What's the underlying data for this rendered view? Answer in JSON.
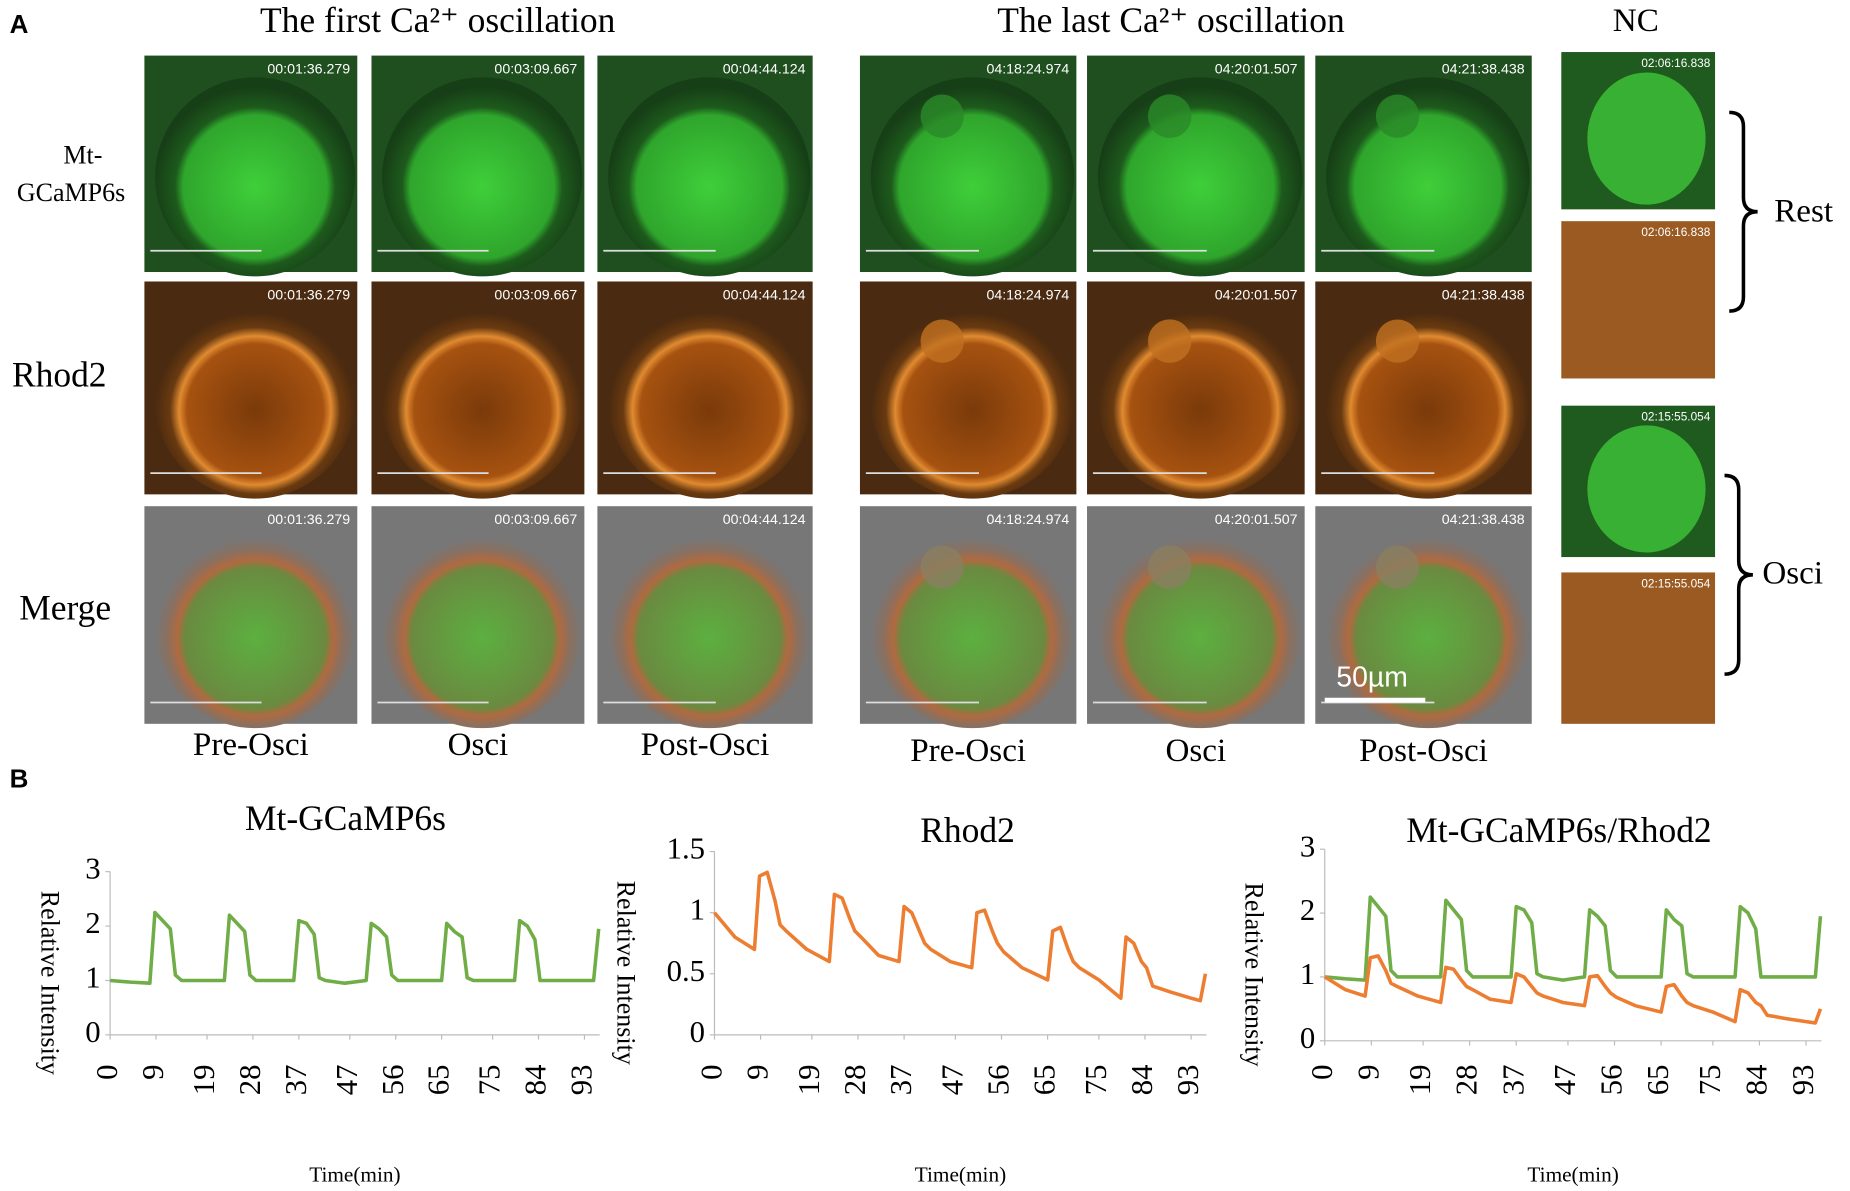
{
  "figure": {
    "panel_labels": [
      "A",
      "B"
    ],
    "group_titles": [
      "The first Ca²⁺ oscillation",
      "The last Ca²⁺ oscillation",
      "NC"
    ],
    "row_labels": [
      "Mt-",
      "GCaMP6s",
      "Rhod2",
      "Merge"
    ],
    "column_labels": [
      "Pre-Osci",
      "Osci",
      "Post-Osci",
      "Pre-Osci",
      "Osci",
      "Post-Osci"
    ],
    "timestamps": [
      "00:01:36.279",
      "00:03:09.667",
      "00:04:44.124",
      "04:18:24.974",
      "04:20:01.507",
      "04:21:38.438"
    ],
    "nc_timestamps": [
      "02:06:16.838",
      "02:06:16.838",
      "02:15:55.054",
      "02:15:55.054"
    ],
    "nc_labels": [
      "Rest",
      "Osci"
    ],
    "scale_bar": "50µm"
  },
  "chart_data": [
    {
      "type": "line",
      "title": "Mt-GCaMP6s",
      "xlabel": "Time(min)",
      "ylabel": "Relative Intensity",
      "x": [
        0,
        4,
        7.8,
        8.8,
        10.3,
        11.8,
        12.8,
        14,
        18,
        22.4,
        23.4,
        24.9,
        26.4,
        27.4,
        28.6,
        32,
        36,
        37,
        38.5,
        40,
        41,
        42.2,
        46,
        50.2,
        51.2,
        52.7,
        54.2,
        55.2,
        56.4,
        60,
        65,
        66,
        67.5,
        69,
        70,
        71.2,
        75,
        79.3,
        80.3,
        81.8,
        83.3,
        84.3,
        85.5,
        89,
        93,
        94.8,
        95.8
      ],
      "series": [
        {
          "name": "Mt-GCaMP6s",
          "color": "#70ad47",
          "values": [
            1.0,
            0.97,
            0.95,
            2.25,
            2.1,
            1.95,
            1.1,
            1.0,
            1.0,
            1.0,
            2.2,
            2.05,
            1.9,
            1.1,
            1.0,
            1.0,
            1.0,
            2.1,
            2.05,
            1.85,
            1.05,
            1.0,
            0.95,
            1.0,
            2.05,
            1.95,
            1.8,
            1.1,
            1.0,
            1.0,
            1.0,
            2.05,
            1.9,
            1.8,
            1.05,
            1.0,
            1.0,
            1.0,
            2.1,
            2.0,
            1.75,
            1.0,
            1.0,
            1.0,
            1.0,
            1.0,
            1.95
          ]
        }
      ],
      "xlim": [
        0,
        96
      ],
      "ylim": [
        0,
        3
      ],
      "xticks": [
        0,
        9,
        19,
        28,
        37,
        47,
        56,
        65,
        75,
        84,
        93
      ],
      "yticks": [
        0,
        1,
        2,
        3
      ]
    },
    {
      "type": "line",
      "title": "Rhod2",
      "xlabel": "Time(min)",
      "ylabel": "Relative Intensity",
      "x": [
        0,
        4,
        7.8,
        8.8,
        10.3,
        11.8,
        12.8,
        14,
        18,
        22.4,
        23.4,
        24.9,
        26.4,
        27.4,
        28.6,
        32,
        36,
        37,
        38.5,
        40,
        41,
        42.2,
        46,
        50.2,
        51.2,
        52.7,
        54.2,
        55.2,
        56.4,
        60,
        65,
        66,
        67.5,
        69,
        70,
        71.2,
        75,
        79.3,
        80.3,
        81.8,
        83.3,
        84.3,
        85.5,
        89,
        93,
        94.8,
        95.8
      ],
      "series": [
        {
          "name": "Rhod2",
          "color": "#ed7d31",
          "values": [
            1.0,
            0.8,
            0.7,
            1.3,
            1.33,
            1.1,
            0.9,
            0.85,
            0.7,
            0.6,
            1.15,
            1.12,
            0.95,
            0.85,
            0.8,
            0.65,
            0.6,
            1.05,
            1.0,
            0.85,
            0.75,
            0.7,
            0.6,
            0.55,
            1.0,
            1.02,
            0.85,
            0.75,
            0.68,
            0.55,
            0.45,
            0.85,
            0.88,
            0.7,
            0.6,
            0.55,
            0.45,
            0.3,
            0.8,
            0.75,
            0.6,
            0.55,
            0.4,
            0.35,
            0.3,
            0.28,
            0.5
          ]
        }
      ],
      "xlim": [
        0,
        96
      ],
      "ylim": [
        0,
        1.5
      ],
      "xticks": [
        0,
        9,
        19,
        28,
        37,
        47,
        56,
        65,
        75,
        84,
        93
      ],
      "yticks": [
        0,
        0.5,
        1,
        1.5
      ]
    },
    {
      "type": "line",
      "title": "Mt-GCaMP6s/Rhod2",
      "xlabel": "Time(min)",
      "ylabel": "Relative Intensity",
      "x": [
        0,
        4,
        7.8,
        8.8,
        10.3,
        11.8,
        12.8,
        14,
        18,
        22.4,
        23.4,
        24.9,
        26.4,
        27.4,
        28.6,
        32,
        36,
        37,
        38.5,
        40,
        41,
        42.2,
        46,
        50.2,
        51.2,
        52.7,
        54.2,
        55.2,
        56.4,
        60,
        65,
        66,
        67.5,
        69,
        70,
        71.2,
        75,
        79.3,
        80.3,
        81.8,
        83.3,
        84.3,
        85.5,
        89,
        93,
        94.8,
        95.8
      ],
      "series": [
        {
          "name": "Mt-GCaMP6s",
          "color": "#70ad47",
          "values": [
            1.0,
            0.97,
            0.95,
            2.25,
            2.1,
            1.95,
            1.1,
            1.0,
            1.0,
            1.0,
            2.2,
            2.05,
            1.9,
            1.1,
            1.0,
            1.0,
            1.0,
            2.1,
            2.05,
            1.85,
            1.05,
            1.0,
            0.95,
            1.0,
            2.05,
            1.95,
            1.8,
            1.1,
            1.0,
            1.0,
            1.0,
            2.05,
            1.9,
            1.8,
            1.05,
            1.0,
            1.0,
            1.0,
            2.1,
            2.0,
            1.75,
            1.0,
            1.0,
            1.0,
            1.0,
            1.0,
            1.95
          ]
        },
        {
          "name": "Rhod2",
          "color": "#ed7d31",
          "values": [
            1.0,
            0.8,
            0.7,
            1.3,
            1.33,
            1.1,
            0.9,
            0.85,
            0.7,
            0.6,
            1.15,
            1.12,
            0.95,
            0.85,
            0.8,
            0.65,
            0.6,
            1.05,
            1.0,
            0.85,
            0.75,
            0.7,
            0.6,
            0.55,
            1.0,
            1.02,
            0.85,
            0.75,
            0.68,
            0.55,
            0.45,
            0.85,
            0.88,
            0.7,
            0.6,
            0.55,
            0.45,
            0.3,
            0.8,
            0.75,
            0.6,
            0.55,
            0.4,
            0.35,
            0.3,
            0.28,
            0.5
          ]
        }
      ],
      "xlim": [
        0,
        96
      ],
      "ylim": [
        0,
        3
      ],
      "xticks": [
        0,
        9,
        19,
        28,
        37,
        47,
        56,
        65,
        75,
        84,
        93
      ],
      "yticks": [
        0,
        1,
        2,
        3
      ]
    }
  ]
}
